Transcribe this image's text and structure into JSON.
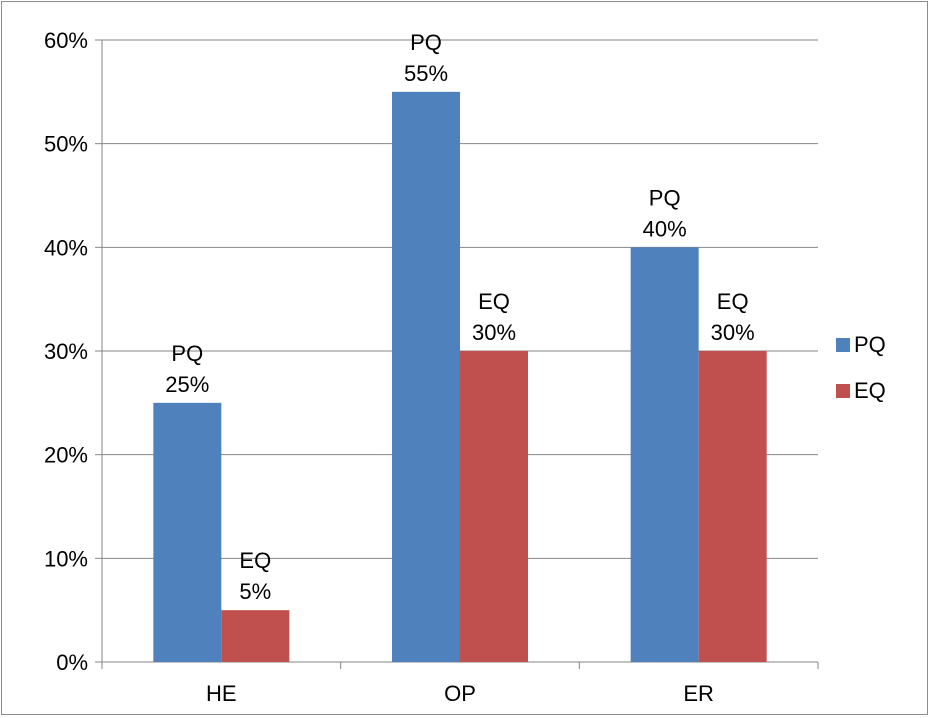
{
  "chart_data": {
    "type": "bar",
    "categories": [
      "HE",
      "OP",
      "ER"
    ],
    "series": [
      {
        "name": "PQ",
        "values": [
          25,
          55,
          40
        ],
        "color": "#4f81bd"
      },
      {
        "name": "EQ",
        "values": [
          5,
          30,
          30
        ],
        "color": "#c0504d"
      }
    ],
    "ylim": [
      0,
      60
    ],
    "yticks": [
      0,
      10,
      20,
      30,
      40,
      50,
      60
    ],
    "y_tick_format": "percent",
    "grid": true,
    "legend": "right",
    "data_labels": "series name and value"
  }
}
